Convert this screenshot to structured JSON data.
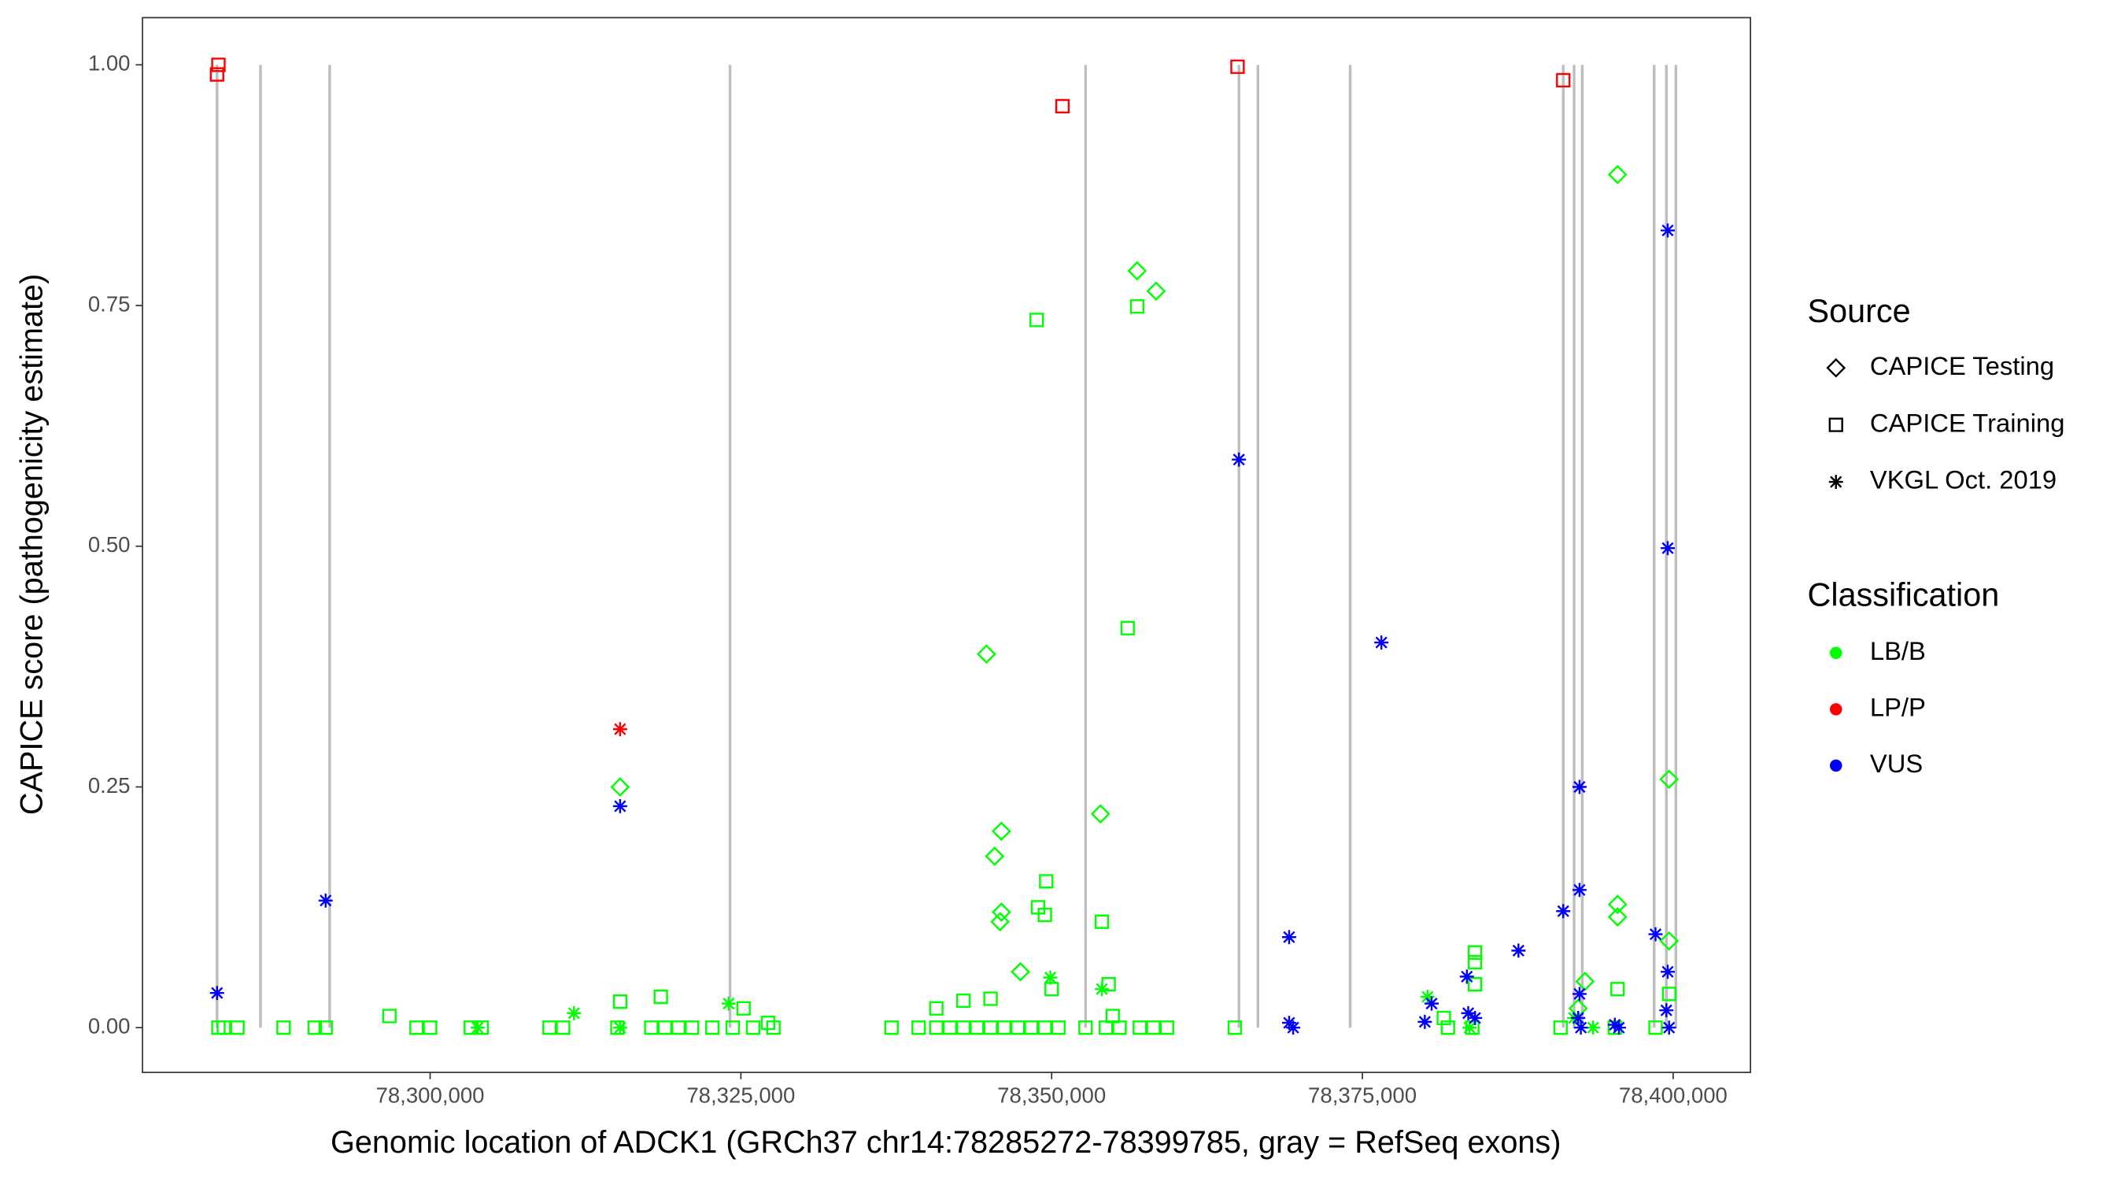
{
  "chart_data": {
    "type": "scatter",
    "x_label": "Genomic location of ADCK1 (GRCh37 chr14:78285272-78399785, gray = RefSeq exons)",
    "y_label": "CAPICE score (pathogenicity estimate)",
    "xlim": [
      78276860,
      78406220
    ],
    "ylim": [
      -0.0465,
      1.049
    ],
    "xticks": [
      {
        "value": 78300000,
        "label": "78,300,000"
      },
      {
        "value": 78325000,
        "label": "78,325,000"
      },
      {
        "value": 78350000,
        "label": "78,350,000"
      },
      {
        "value": 78375000,
        "label": "78,375,000"
      },
      {
        "value": 78400000,
        "label": "78,400,000"
      }
    ],
    "yticks": [
      {
        "value": 0,
        "label": "0.00"
      },
      {
        "value": 0.25,
        "label": "0.25"
      },
      {
        "value": 0.5,
        "label": "0.50"
      },
      {
        "value": 0.75,
        "label": "0.75"
      },
      {
        "value": 1,
        "label": "1.00"
      }
    ],
    "exon_color": "#bebebe",
    "exons": [
      78282860,
      78286354,
      78291921,
      78324127,
      78352729,
      78365066,
      78366594,
      78374017,
      78391157,
      78392031,
      78392686,
      78398472,
      78399454,
      78400218
    ],
    "legend": {
      "source_title": "Source",
      "sources": [
        {
          "name": "CAPICE Testing",
          "shape": "diamond"
        },
        {
          "name": "CAPICE Training",
          "shape": "square"
        },
        {
          "name": "VKGL Oct. 2019",
          "shape": "star"
        }
      ],
      "classification_title": "Classification",
      "classifications": [
        {
          "name": "LB/B",
          "color": "#00ff00"
        },
        {
          "name": "LP/P",
          "color": "#ff0000"
        },
        {
          "name": "VUS",
          "color": "#0000ff"
        }
      ]
    },
    "series": [
      {
        "source": 0,
        "classification": 0,
        "x": [
          78315284,
          78344760,
          78345415,
          78345961,
          78345961,
          78345852,
          78347489,
          78353930,
          78356878,
          78358406,
          78395524,
          78395524,
          78395524,
          78399672,
          78399672,
          78392904,
          78392358
        ],
        "values": [
          0.25,
          0.388,
          0.178,
          0.204,
          0.12,
          0.11,
          0.058,
          0.222,
          0.786,
          0.765,
          0.886,
          0.128,
          0.115,
          0.258,
          0.09,
          0.048,
          0.02
        ]
      },
      {
        "source": 1,
        "classification": 0,
        "x": [
          78348799,
          78356878,
          78356114,
          78349563,
          78348908,
          78349454,
          78354039,
          78315284,
          78318559,
          78296725,
          78384061,
          78384061,
          78384061,
          78395524,
          78399672,
          78354585,
          78345087,
          78325218,
          78327183,
          78340721,
          78342904,
          78350000,
          78354913,
          78381550,
          78282969,
          78283406,
          78284498,
          78288210,
          78290721,
          78291594,
          78298908,
          78300000,
          78303275,
          78304148,
          78309607,
          78310699,
          78315066,
          78317795,
          78318886,
          78319978,
          78321070,
          78322707,
          78324345,
          78325983,
          78327620,
          78337118,
          78339301,
          78340721,
          78341812,
          78342904,
          78343996,
          78345087,
          78346179,
          78347271,
          78348362,
          78349454,
          78350546,
          78352729,
          78354367,
          78355459,
          78357096,
          78358188,
          78359279,
          78364738,
          78381878,
          78383843,
          78390939,
          78395306,
          78398581
        ],
        "values": [
          0.735,
          0.749,
          0.415,
          0.152,
          0.125,
          0.117,
          0.11,
          0.027,
          0.032,
          0.012,
          0.078,
          0.068,
          0.045,
          0.04,
          0.035,
          0.045,
          0.03,
          0.02,
          0.005,
          0.02,
          0.028,
          0.04,
          0.012,
          0.01,
          0,
          0,
          0,
          0,
          0,
          0,
          0,
          0,
          0,
          0,
          0,
          0,
          0,
          0,
          0,
          0,
          0,
          0,
          0,
          0,
          0,
          0,
          0,
          0,
          0,
          0,
          0,
          0,
          0,
          0,
          0,
          0,
          0,
          0,
          0,
          0,
          0,
          0,
          0,
          0,
          0,
          0,
          0,
          0,
          0
        ]
      },
      {
        "source": 1,
        "classification": 1,
        "x": [
          78282860,
          78282969,
          78350873,
          78364956,
          78391157
        ],
        "values": [
          0.99,
          1.0,
          0.957,
          0.998,
          0.984
        ]
      },
      {
        "source": 2,
        "classification": 0,
        "x": [
          78303821,
          78311572,
          78315284,
          78324017,
          78349891,
          78354039,
          78380240,
          78383624,
          78392031,
          78393559
        ],
        "values": [
          0,
          0.015,
          0,
          0.025,
          0.052,
          0.04,
          0.032,
          0,
          0.01,
          0
        ]
      },
      {
        "source": 2,
        "classification": 1,
        "x": [
          78315284
        ],
        "values": [
          0.31
        ]
      },
      {
        "source": 2,
        "classification": 2,
        "x": [
          78282860,
          78291594,
          78315284,
          78365066,
          78369105,
          78369105,
          78369432,
          78376528,
          78380022,
          78380568,
          78383406,
          78383515,
          78384061,
          78387555,
          78391157,
          78392467,
          78392467,
          78392467,
          78392358,
          78392576,
          78395306,
          78395633,
          78398581,
          78399563,
          78399563,
          78399563,
          78399454,
          78399672
        ],
        "values": [
          0.036,
          0.132,
          0.23,
          0.59,
          0.094,
          0.005,
          0,
          0.4,
          0.006,
          0.025,
          0.053,
          0.015,
          0.01,
          0.08,
          0.121,
          0.25,
          0.143,
          0.035,
          0.01,
          0,
          0.003,
          0,
          0.097,
          0.828,
          0.498,
          0.058,
          0.018,
          0
        ]
      }
    ]
  }
}
